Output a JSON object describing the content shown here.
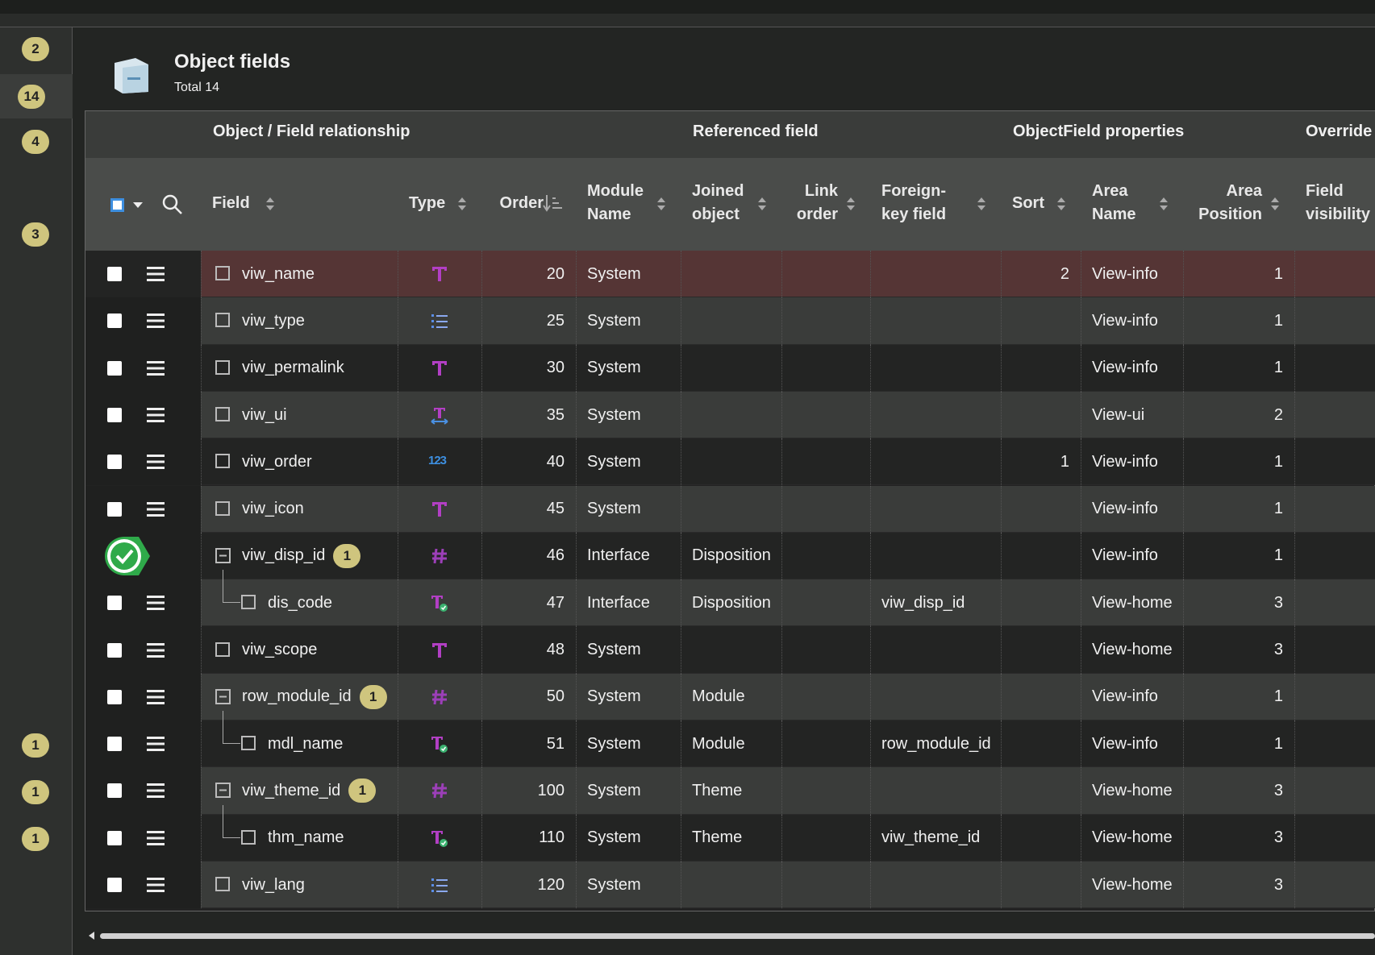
{
  "header": {
    "title": "Object fields",
    "subtitle": "Total 14"
  },
  "sidebar": {
    "badges": [
      2,
      14,
      4,
      3,
      1,
      1,
      1
    ]
  },
  "table": {
    "groups": [
      "Object / Field relationship",
      "Referenced field",
      "ObjectField properties",
      "Override"
    ],
    "columns": [
      "Field",
      "Type",
      "Order",
      "Module Name",
      "Joined object",
      "Link order",
      "Foreign-key field",
      "Sort",
      "Area Name",
      "Area Position",
      "Field visibility"
    ],
    "rows": [
      {
        "field": "viw_name",
        "type": "text",
        "order": 20,
        "module": "System",
        "sort": 2,
        "area": "View-info",
        "area_position": 1
      },
      {
        "field": "viw_type",
        "type": "list",
        "order": 25,
        "module": "System",
        "area": "View-info",
        "area_position": 1
      },
      {
        "field": "viw_permalink",
        "type": "text",
        "order": 30,
        "module": "System",
        "area": "View-info",
        "area_position": 1
      },
      {
        "field": "viw_ui",
        "type": "ui",
        "order": 35,
        "module": "System",
        "area": "View-ui",
        "area_position": 2
      },
      {
        "field": "viw_order",
        "type": "123",
        "order": 40,
        "module": "System",
        "sort": 1,
        "area": "View-info",
        "area_position": 1
      },
      {
        "field": "viw_icon",
        "type": "text",
        "order": 45,
        "module": "System",
        "area": "View-info",
        "area_position": 1
      },
      {
        "field": "viw_disp_id",
        "badge": 1,
        "type": "hash",
        "order": 46,
        "module": "Interface",
        "joined": "Disposition",
        "area": "View-info",
        "area_position": 1
      },
      {
        "field": "dis_code",
        "child": true,
        "type": "lookup",
        "order": 47,
        "module": "Interface",
        "joined": "Disposition",
        "fk": "viw_disp_id",
        "area": "View-home",
        "area_position": 3
      },
      {
        "field": "viw_scope",
        "type": "text",
        "order": 48,
        "module": "System",
        "area": "View-home",
        "area_position": 3
      },
      {
        "field": "row_module_id",
        "badge": 1,
        "type": "hash",
        "order": 50,
        "module": "System",
        "joined": "Module",
        "area": "View-info",
        "area_position": 1
      },
      {
        "field": "mdl_name",
        "child": true,
        "type": "lookup",
        "order": 51,
        "module": "System",
        "joined": "Module",
        "fk": "row_module_id",
        "area": "View-info",
        "area_position": 1
      },
      {
        "field": "viw_theme_id",
        "badge": 1,
        "type": "hash",
        "order": 100,
        "module": "System",
        "joined": "Theme",
        "area": "View-home",
        "area_position": 3
      },
      {
        "field": "thm_name",
        "child": true,
        "type": "lookup",
        "order": 110,
        "module": "System",
        "joined": "Theme",
        "fk": "viw_theme_id",
        "area": "View-home",
        "area_position": 3
      },
      {
        "field": "viw_lang",
        "type": "list",
        "order": 120,
        "module": "System",
        "area": "View-home",
        "area_position": 3
      }
    ]
  }
}
